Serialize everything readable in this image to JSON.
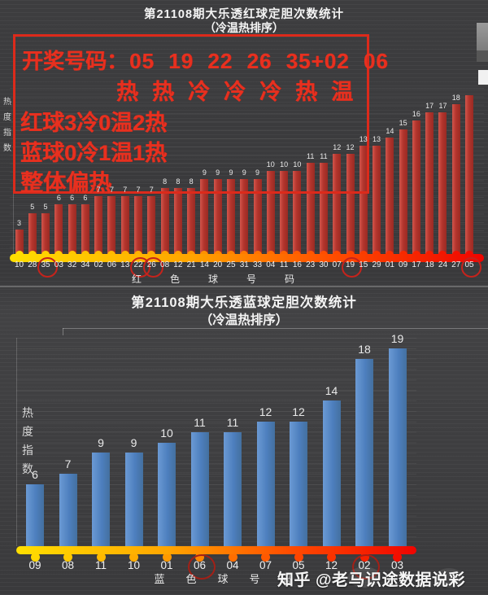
{
  "annotation": {
    "label": "开奖号码：",
    "numbers": "05 19 22 26 35+02 06",
    "temps": "热热冷冷冷热温",
    "red_summary": "红球3冷0温2热",
    "blue_summary": "蓝球0冷1温1热",
    "overall": "整体偏热"
  },
  "watermark": {
    "text": "知乎 @老马识途数据说彩"
  },
  "chart_data": [
    {
      "type": "bar",
      "title": "第21108期大乐透红球定胆次数统计",
      "subtitle": "（冷温热排序）",
      "ylabel": "热度指数",
      "xlabel": "红色球号码",
      "categories": [
        "10",
        "28",
        "35",
        "03",
        "32",
        "34",
        "02",
        "06",
        "13",
        "22",
        "26",
        "08",
        "12",
        "21",
        "14",
        "20",
        "25",
        "31",
        "33",
        "04",
        "11",
        "16",
        "23",
        "30",
        "07",
        "19",
        "15",
        "29",
        "01",
        "09",
        "17",
        "18",
        "24",
        "27",
        "05"
      ],
      "values": [
        3,
        5,
        5,
        6,
        6,
        6,
        7,
        7,
        7,
        7,
        7,
        8,
        8,
        8,
        9,
        9,
        9,
        9,
        9,
        10,
        10,
        10,
        11,
        11,
        12,
        12,
        13,
        13,
        14,
        15,
        16,
        17,
        17,
        18,
        19
      ],
      "circled_categories": [
        "35",
        "22",
        "26",
        "19",
        "05"
      ],
      "last_value_label_hidden": true,
      "bar_color": "#b4352d",
      "axis_colors": [
        "#ffdf00",
        "#ffa500",
        "#ff4d00",
        "#ef0400"
      ],
      "circle_color": "#c5231c",
      "ylim": [
        0,
        20
      ],
      "grid": true,
      "legend_position": "none"
    },
    {
      "type": "bar",
      "title": "第21108期大乐透蓝球定胆次数统计",
      "subtitle": "（冷温热排序）",
      "ylabel": "热度指数",
      "xlabel": "蓝色球号码",
      "categories": [
        "09",
        "08",
        "11",
        "10",
        "01",
        "06",
        "04",
        "07",
        "05",
        "12",
        "02",
        "03"
      ],
      "values": [
        6,
        7,
        9,
        9,
        10,
        11,
        11,
        12,
        12,
        14,
        18,
        19
      ],
      "circled_categories": [
        "06",
        "02"
      ],
      "last_value_label_hidden": false,
      "bar_color": "#4d7fbe",
      "axis_colors": [
        "#ffdf00",
        "#ffa500",
        "#ff4d00",
        "#ef0400"
      ],
      "circle_color": "#a32017",
      "ylim": [
        0,
        20
      ],
      "grid": true,
      "legend_position": "none"
    }
  ]
}
